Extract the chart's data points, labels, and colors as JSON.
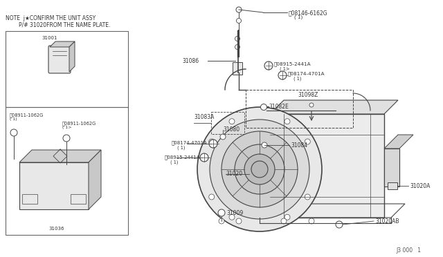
{
  "bg_color": "#ffffff",
  "line_color": "#444444",
  "text_color": "#333333",
  "note1": "NOTE  j★CONFIRM THE UNIT ASSY",
  "note2": "        P/# 31020FROM THE NAME PLATE.",
  "footer": "J3 000   1",
  "parts_left_top_label": "31001",
  "parts_left_bot_label": "31036",
  "bolt1": "ⓝ08911-1062G",
  "bolt2": "ⓝ08911-1062G",
  "label_B1": "Ⓑ08146-6162G",
  "label_M1": "Ⓠ08915-2441A",
  "label_B2": "Ⓑ08174-4701A",
  "label_B3": "Ⓑ08174-4701A",
  "label_M2": "Ⓠ08915-2441A",
  "label_31086": "31086",
  "label_31098Z": "31098Z",
  "label_31082E": "31082E",
  "label_31083A": "31083A",
  "label_31080": "31080",
  "label_31084": "31084",
  "label_31020": "31020",
  "label_31009": "31009",
  "label_31020A": "31020A",
  "label_31020AB": "31020AB"
}
